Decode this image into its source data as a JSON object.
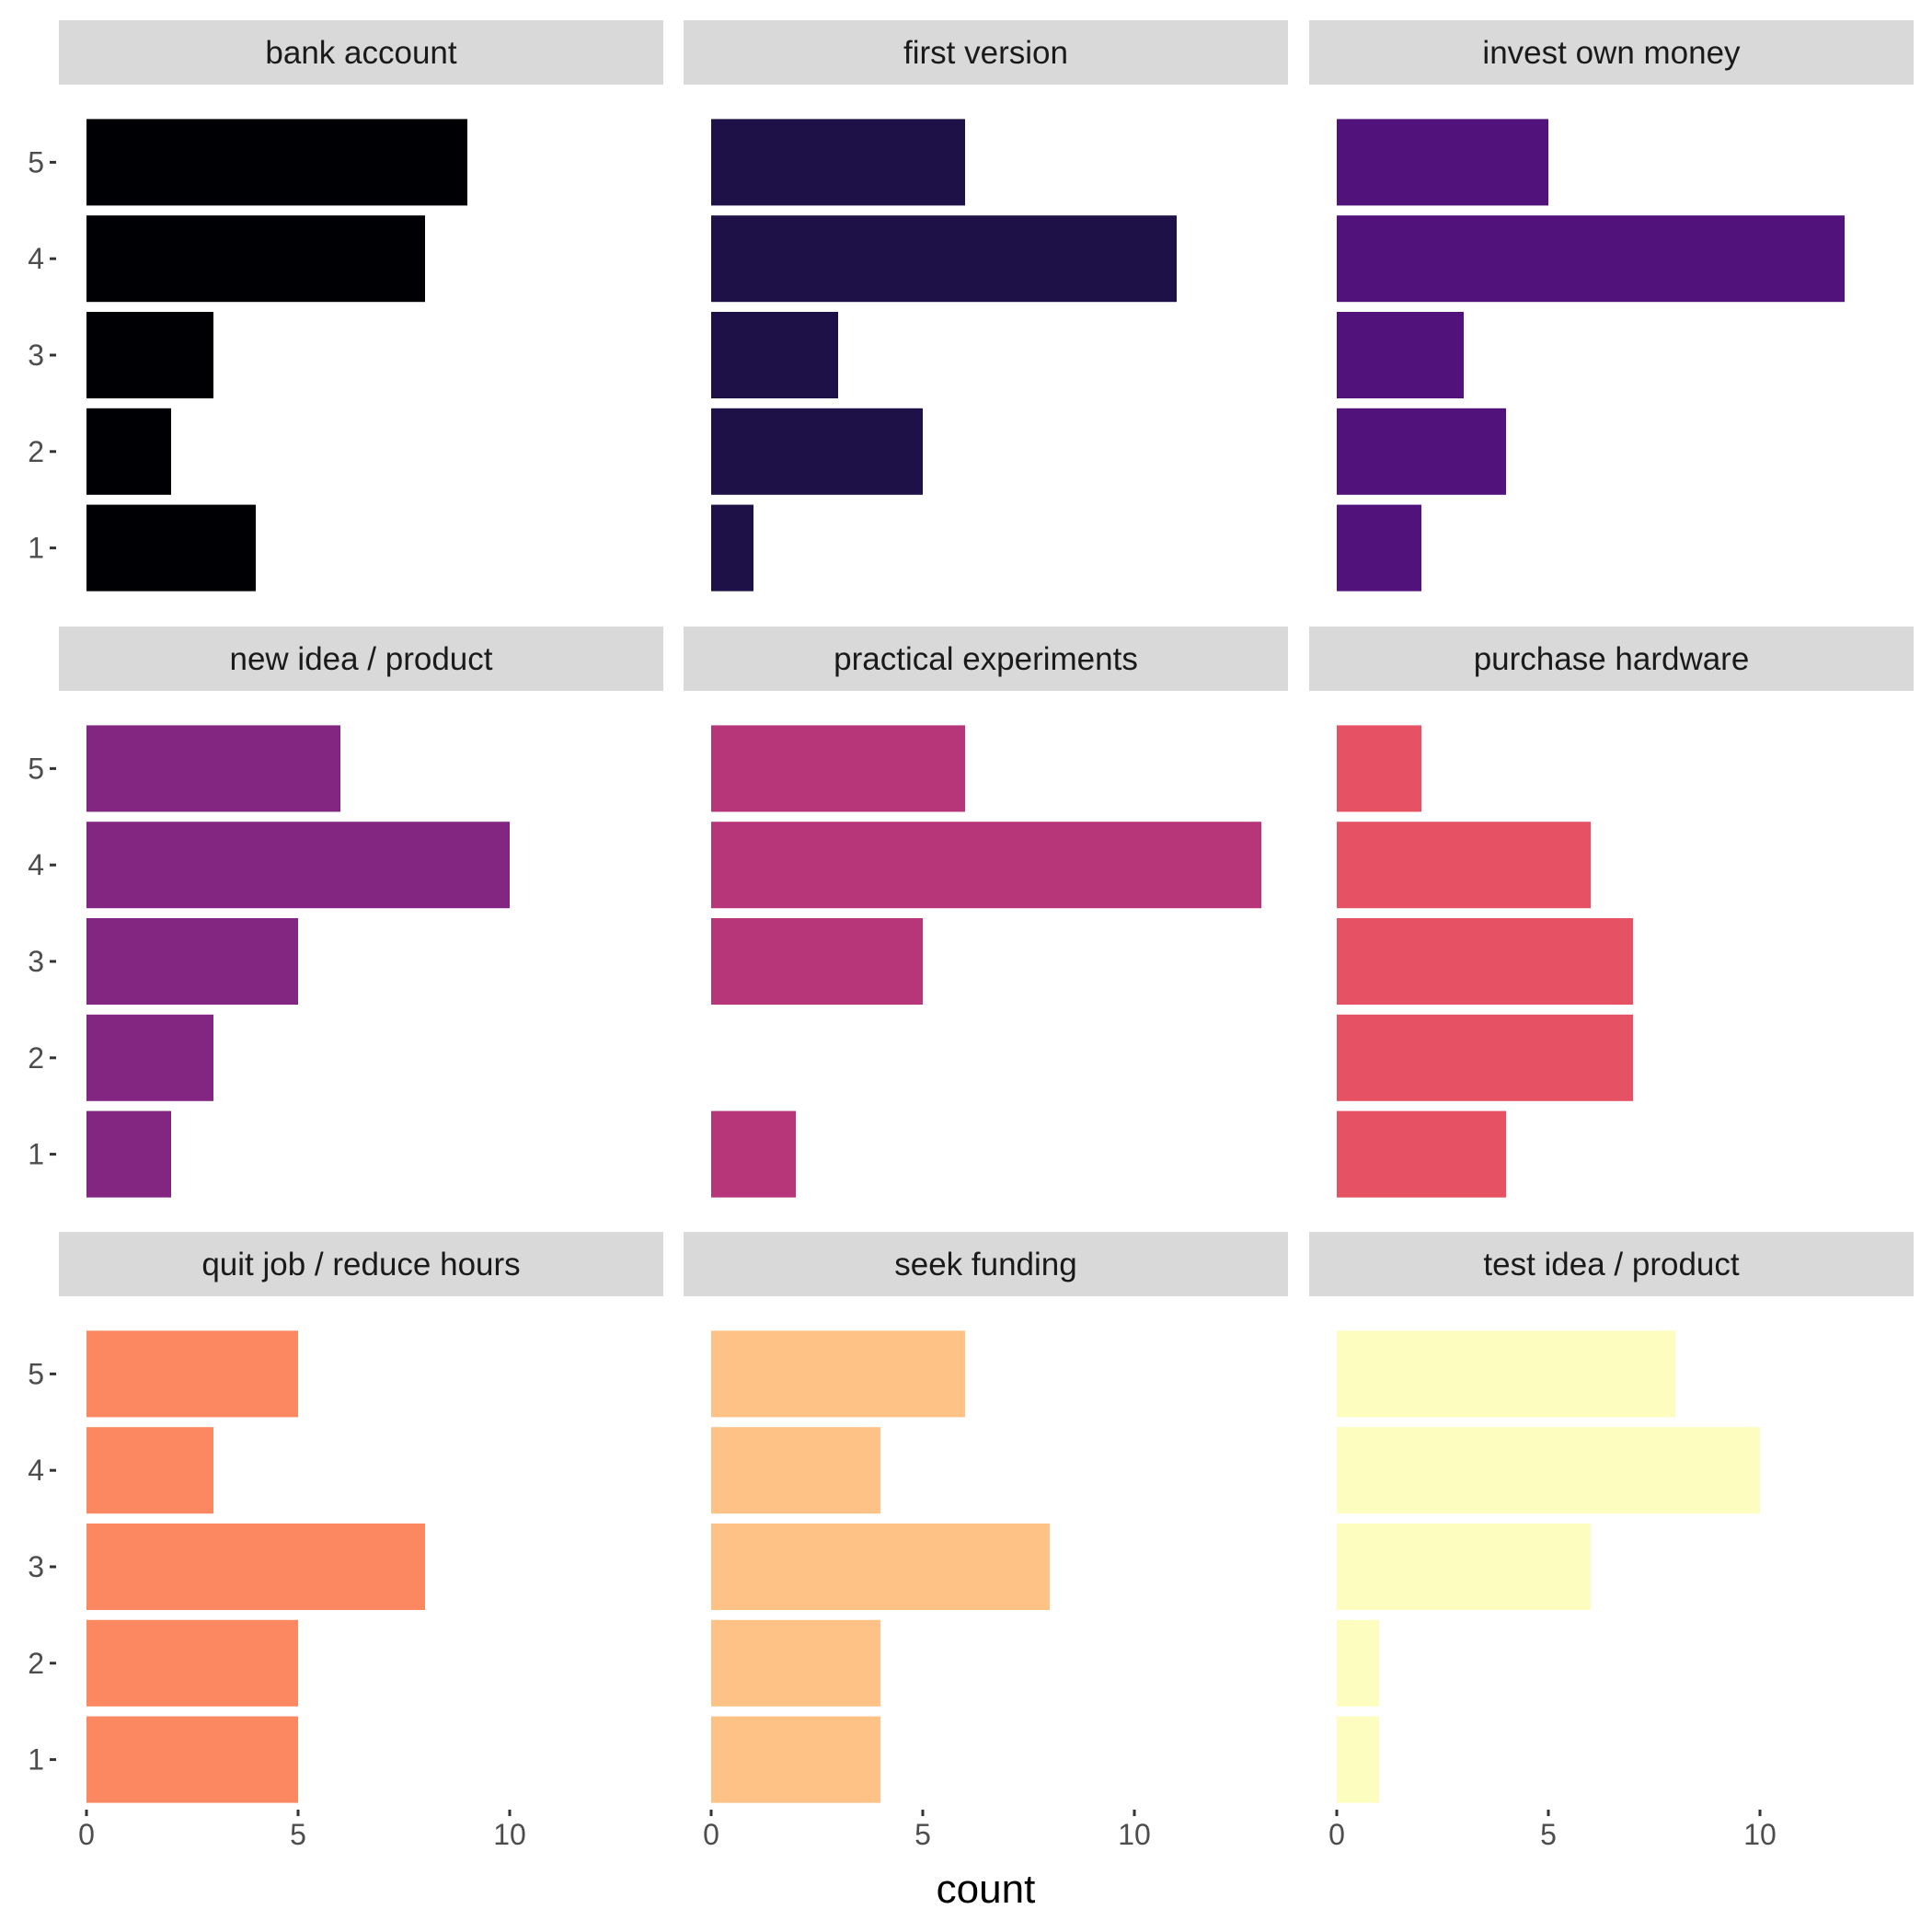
{
  "chart_data": {
    "type": "bar",
    "orientation": "horizontal",
    "facets": 9,
    "layout": "3x3 grid",
    "categories": [
      "1",
      "2",
      "3",
      "4",
      "5"
    ],
    "xlabel": "count",
    "ylabel": "",
    "xlim": [
      0,
      13.6
    ],
    "x_ticks": [
      0,
      5,
      10
    ],
    "grid": false,
    "legend": "none",
    "panels": [
      {
        "name": "bank account",
        "color": "#000004",
        "values": [
          4,
          2,
          3,
          8,
          9
        ]
      },
      {
        "name": "first version",
        "color": "#1d1147",
        "values": [
          1,
          5,
          3,
          11,
          6
        ]
      },
      {
        "name": "invest own money",
        "color": "#51127c",
        "values": [
          2,
          4,
          3,
          12,
          5
        ]
      },
      {
        "name": "new idea / product",
        "color": "#822681",
        "values": [
          2,
          3,
          5,
          10,
          6
        ]
      },
      {
        "name": "practical experiments",
        "color": "#b63679",
        "values": [
          2,
          0,
          5,
          13,
          6
        ]
      },
      {
        "name": "purchase hardware",
        "color": "#e65164",
        "values": [
          4,
          7,
          7,
          6,
          2
        ]
      },
      {
        "name": "quit job / reduce hours",
        "color": "#fb8861",
        "values": [
          5,
          5,
          8,
          3,
          5
        ]
      },
      {
        "name": "seek funding",
        "color": "#fec287",
        "values": [
          4,
          4,
          8,
          4,
          6
        ]
      },
      {
        "name": "test idea / product",
        "color": "#fcfdbf",
        "values": [
          1,
          1,
          6,
          10,
          8
        ]
      }
    ]
  }
}
